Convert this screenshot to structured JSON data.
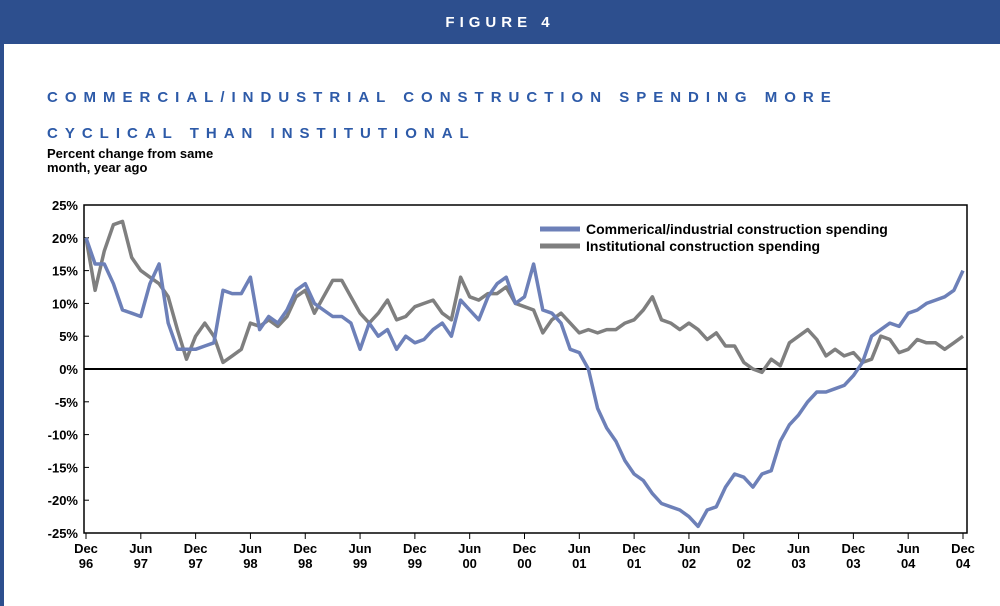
{
  "header": "FIGURE 4",
  "chart_data": {
    "type": "line",
    "title": "COMMERCIAL/INDUSTRIAL CONSTRUCTION SPENDING MORE CYCLICAL THAN INSTITUTIONAL",
    "y_label": "Percent change from same month, year ago",
    "categories": [
      "Dec 96",
      null,
      null,
      null,
      null,
      null,
      "Jun 97",
      null,
      null,
      null,
      null,
      null,
      "Dec 97",
      null,
      null,
      null,
      null,
      null,
      "Jun 98",
      null,
      null,
      null,
      null,
      null,
      "Dec 98",
      null,
      null,
      null,
      null,
      null,
      "Jun 99",
      null,
      null,
      null,
      null,
      null,
      "Dec 99",
      null,
      null,
      null,
      null,
      null,
      "Jun 00",
      null,
      null,
      null,
      null,
      null,
      "Dec 00",
      null,
      null,
      null,
      null,
      null,
      "Jun 01",
      null,
      null,
      null,
      null,
      null,
      "Dec 01",
      null,
      null,
      null,
      null,
      null,
      "Jun 02",
      null,
      null,
      null,
      null,
      null,
      "Dec 02",
      null,
      null,
      null,
      null,
      null,
      "Jun 03",
      null,
      null,
      null,
      null,
      null,
      "Dec 03",
      null,
      null,
      null,
      null,
      null,
      "Jun 04",
      null,
      null,
      null,
      null,
      null,
      "Dec 04"
    ],
    "series": [
      {
        "name": "Commerical/industrial construction spending",
        "color": "#6d80b8",
        "values": [
          20,
          16,
          16,
          13,
          9,
          8.5,
          8,
          13,
          16,
          7,
          3,
          3,
          3,
          3.5,
          4,
          12,
          11.5,
          11.5,
          14,
          6,
          8,
          7,
          9,
          12,
          13,
          10,
          9,
          8,
          8,
          7,
          3,
          7,
          5,
          6,
          3,
          5,
          4,
          4.5,
          6,
          7,
          5,
          10.5,
          9,
          7.5,
          11,
          13,
          14,
          10,
          11,
          16,
          9,
          8.5,
          7,
          3,
          2.5,
          0,
          -6,
          -9,
          -11,
          -14,
          -16,
          -17,
          -19,
          -20.5,
          -21,
          -21.5,
          -22.5,
          -24,
          -21.5,
          -21,
          -18,
          -16,
          -16.5,
          -18,
          -16,
          -15.5,
          -11,
          -8.5,
          -7,
          -5,
          -3.5,
          -3.5,
          -3,
          -2.5,
          -1,
          1,
          5,
          6,
          7,
          6.5,
          8.5,
          9,
          10,
          10.5,
          11,
          12,
          15
        ]
      },
      {
        "name": "Institutional construction spending",
        "color": "#7f7f7f",
        "values": [
          20,
          12,
          18,
          22,
          22.5,
          17,
          15,
          14,
          13,
          11,
          6,
          1.5,
          5,
          7,
          5,
          1,
          2,
          3,
          7,
          6.5,
          7.5,
          6.5,
          8,
          11,
          12,
          8.5,
          11,
          13.5,
          13.5,
          11,
          8.5,
          7,
          8.5,
          10.5,
          7.5,
          8,
          9.5,
          10,
          10.5,
          8.5,
          7.5,
          14,
          11,
          10.5,
          11.5,
          11.5,
          12.5,
          10,
          9.5,
          9,
          5.5,
          7.5,
          8.5,
          7,
          5.5,
          6,
          5.5,
          6,
          6,
          7,
          7.5,
          9,
          11,
          7.5,
          7,
          6,
          7,
          6,
          4.5,
          5.5,
          3.5,
          3.5,
          1,
          0,
          -0.5,
          1.5,
          0.5,
          4,
          5,
          6,
          4.5,
          2,
          3,
          2,
          2.5,
          1,
          1.5,
          5,
          4.5,
          2.5,
          3,
          4.5,
          4,
          4,
          3,
          4,
          5
        ]
      }
    ],
    "ylim": [
      -25,
      25
    ],
    "yticks": [
      {
        "value": -25,
        "label": "-25%"
      },
      {
        "value": -20,
        "label": "-20%"
      },
      {
        "value": -15,
        "label": "-15%"
      },
      {
        "value": -10,
        "label": "-10%"
      },
      {
        "value": -5,
        "label": "-5%"
      },
      {
        "value": 0,
        "label": "0%"
      },
      {
        "value": 5,
        "label": "5%"
      },
      {
        "value": 10,
        "label": "10%"
      },
      {
        "value": 15,
        "label": "15%"
      },
      {
        "value": 20,
        "label": "20%"
      },
      {
        "value": 25,
        "label": "25%"
      }
    ],
    "legend": "top-right"
  }
}
